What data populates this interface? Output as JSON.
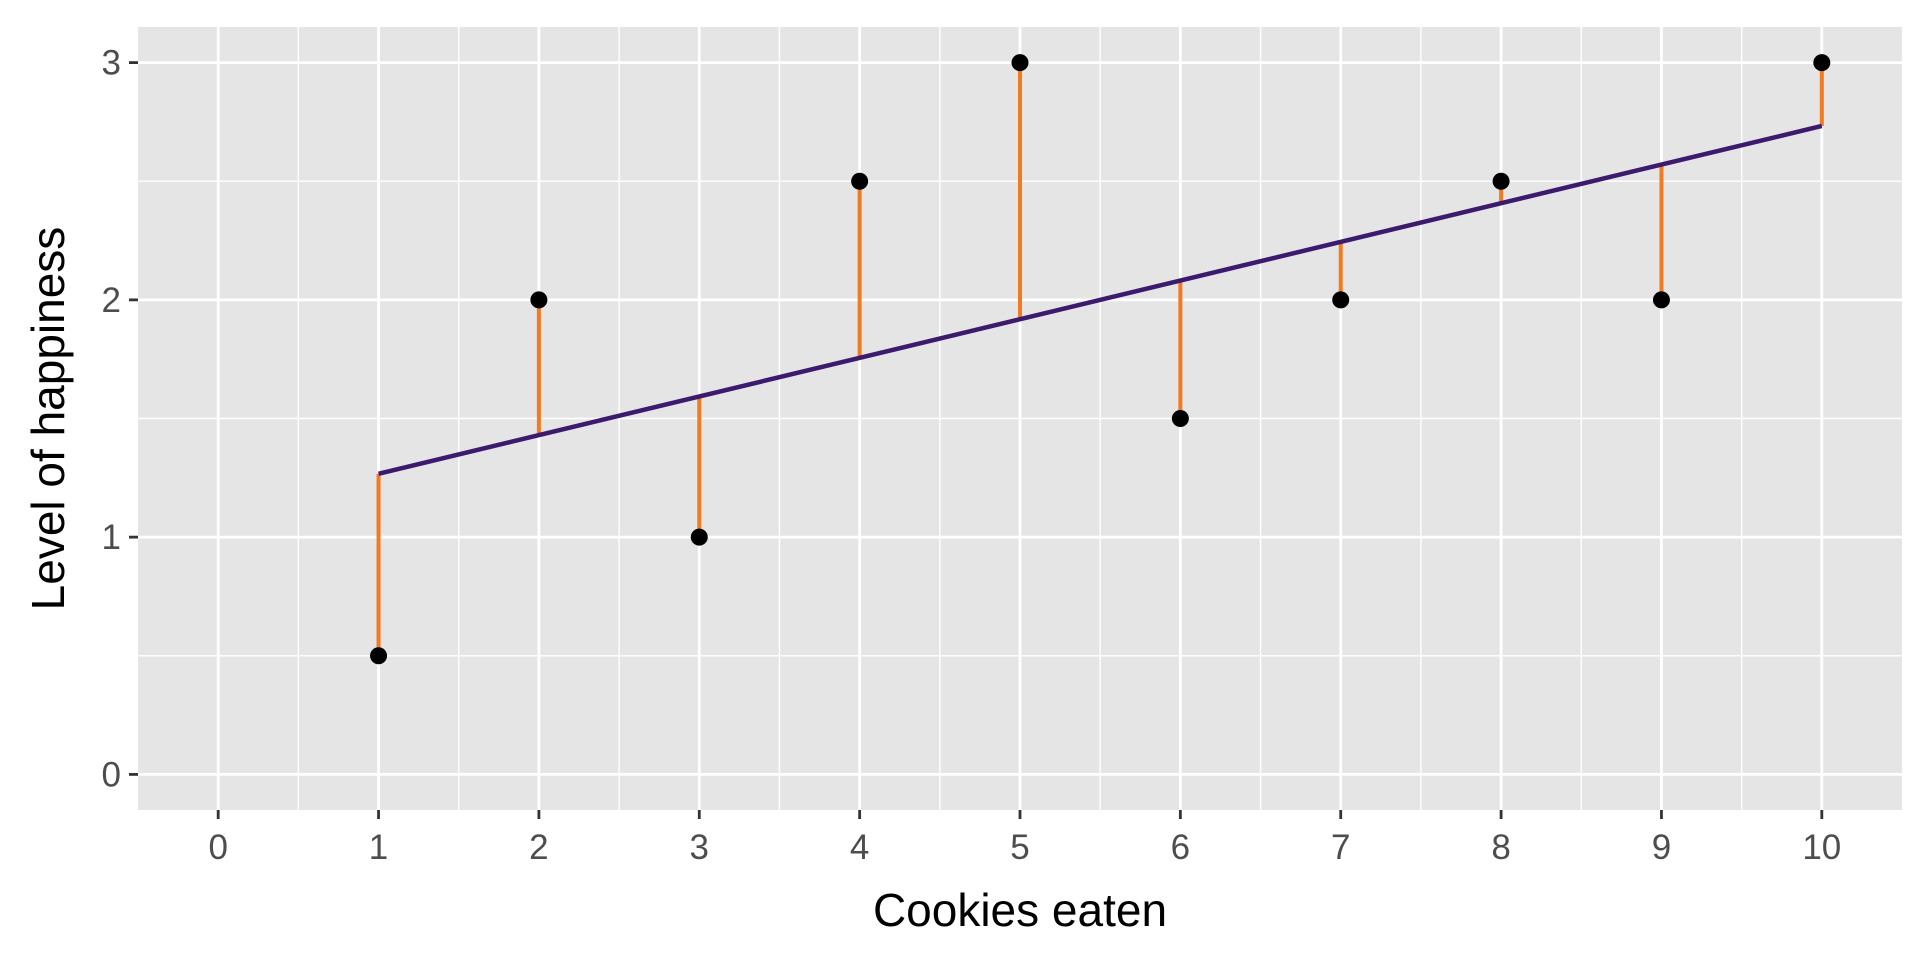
{
  "chart_data": {
    "type": "scatter",
    "title": "",
    "xlabel": "Cookies eaten",
    "ylabel": "Level of happiness",
    "xlim": [
      -0.5,
      10.5
    ],
    "ylim": [
      -0.15,
      3.15
    ],
    "x_ticks": [
      0,
      1,
      2,
      3,
      4,
      5,
      6,
      7,
      8,
      9,
      10
    ],
    "x_tick_labels": [
      "0",
      "1",
      "2",
      "3",
      "4",
      "5",
      "6",
      "7",
      "8",
      "9",
      "10"
    ],
    "y_ticks": [
      0,
      1,
      2,
      3
    ],
    "y_tick_labels": [
      "0",
      "1",
      "2",
      "3"
    ],
    "grid": true,
    "background": "#e5e5e5",
    "points": [
      {
        "x": 1,
        "y": 0.5
      },
      {
        "x": 2,
        "y": 2
      },
      {
        "x": 3,
        "y": 1
      },
      {
        "x": 4,
        "y": 2.5
      },
      {
        "x": 5,
        "y": 3
      },
      {
        "x": 6,
        "y": 1.5
      },
      {
        "x": 7,
        "y": 2
      },
      {
        "x": 8,
        "y": 2.5
      },
      {
        "x": 9,
        "y": 2
      },
      {
        "x": 10,
        "y": 3
      }
    ],
    "fit_line": {
      "x": [
        1,
        10
      ],
      "y": [
        1.267,
        2.733
      ],
      "color": "#3c1a6e"
    },
    "residual_color": "#f47a22",
    "point_color": "#000000"
  }
}
